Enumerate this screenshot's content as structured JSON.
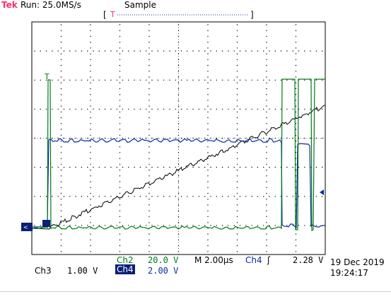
{
  "header": {
    "brand": "Tek",
    "run_status": "Run: 25.0MS/s",
    "acq_mode": "Sample",
    "trigger_position_label": "T"
  },
  "channels": {
    "ch3": {
      "label": "Ch3",
      "scale": "1.00 V",
      "color": "#000000"
    },
    "ch2": {
      "label": "Ch2",
      "scale": "20.0 V",
      "color": "#007a1a"
    },
    "ch4": {
      "label": "Ch4",
      "scale": "2.00 V",
      "color": "#0a2aa8"
    }
  },
  "timebase": {
    "label": "M 2.00µs"
  },
  "trigger": {
    "source": "Ch4",
    "slope_symbol": "ʃ",
    "level": "2.28 V"
  },
  "datetime": {
    "date": "19 Dec 2019",
    "time": "19:24:17"
  },
  "colors": {
    "graticule": "#000000",
    "ch2": "#007a1a",
    "ch4": "#0a2aa8",
    "ch3": "#000000",
    "brand": "#ff2b6b"
  }
}
